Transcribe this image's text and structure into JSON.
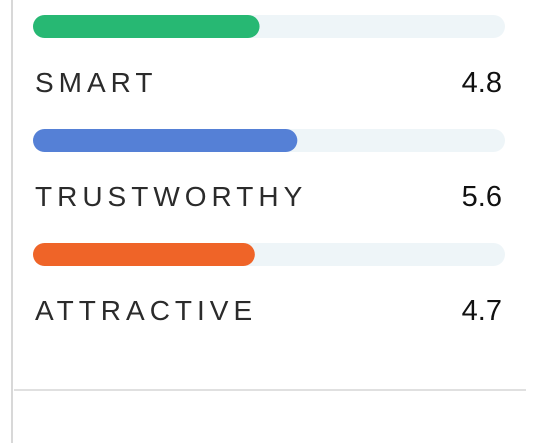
{
  "chart_data": {
    "type": "bar",
    "orientation": "horizontal",
    "categories": [
      "SMART",
      "TRUSTWORTHY",
      "ATTRACTIVE"
    ],
    "values": [
      4.8,
      5.6,
      4.7
    ],
    "colors": [
      "#27b873",
      "#5580d6",
      "#ef6428"
    ],
    "xlim": [
      0,
      10
    ]
  }
}
